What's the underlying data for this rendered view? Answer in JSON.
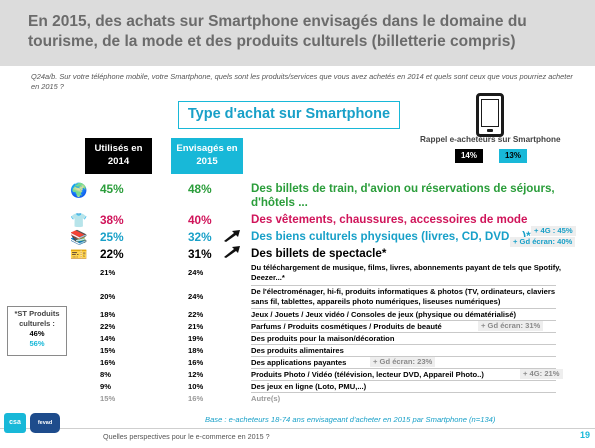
{
  "title": "En 2015, des achats sur Smartphone envisagés dans le domaine du tourisme, de la mode et des produits culturels (billetterie compris)",
  "question": "Q24a/b. Sur votre téléphone mobile, votre Smartphone, quels sont les produits/services que vous avez achetés en 2014 et quels sont ceux que vous pourriez acheter en 2015 ?",
  "type_box": "Type d'achat sur Smartphone",
  "rappel": {
    "label": "Rappel e-acheteurs sur Smartphone",
    "value_2014": "14%",
    "value_2015": "13%"
  },
  "headers": {
    "used": "Utilisés en 2014",
    "planned": "Envisagés en 2015"
  },
  "big_rows": [
    {
      "icon": "globe-icon",
      "glyph": "🌍",
      "used": "45%",
      "planned": "48%",
      "label": "Des billets de train, d'avion ou réservations de séjours, d'hôtels ...",
      "used_color": "#2a9d3a",
      "planned_color": "#2a9d3a",
      "label_color": "#2a9d3a"
    },
    {
      "icon": "clothing-icon",
      "glyph": "👕",
      "used": "38%",
      "planned": "40%",
      "label": "Des vêtements, chaussures, accessoires de mode",
      "used_color": "#d0145a",
      "planned_color": "#d0145a",
      "label_color": "#d0145a"
    },
    {
      "icon": "books-icon",
      "glyph": "📚",
      "used": "25%",
      "planned": "32%",
      "label": "Des biens culturels physiques (livres, CD, DVD ...)*",
      "used_color": "#18a0c8",
      "planned_color": "#18a0c8",
      "label_color": "#18a0c8"
    },
    {
      "icon": "ticket-icon",
      "glyph": "🎫",
      "used": "22%",
      "planned": "31%",
      "label": "Des billets de spectacle*",
      "used_color": "#000000",
      "planned_color": "#000000",
      "label_color": "#000000"
    }
  ],
  "big_notes": {
    "books_4g": "+ 4G : 45%",
    "books_gd": "+ Gd écran: 40%"
  },
  "small_rows": [
    {
      "used": "21%",
      "planned": "24%",
      "label": "Du téléchargement de musique, films, livres, abonnements payant de tels que Spotify, Deezer...*"
    },
    {
      "used": "20%",
      "planned": "24%",
      "label": "De l'électroménager, hi-fi, produits informatiques & photos (TV, ordinateurs, claviers sans fil, tablettes, appareils photo numériques, liseuses numériques)"
    },
    {
      "used": "18%",
      "planned": "22%",
      "label": "Jeux / Jouets / Jeux vidéo / Consoles de jeux (physique ou dématérialisé)"
    },
    {
      "used": "22%",
      "planned": "21%",
      "label": "Parfums / Produits cosmétiques / Produits de beauté"
    },
    {
      "used": "14%",
      "planned": "19%",
      "label": "Des produits pour la maison/décoration"
    },
    {
      "used": "15%",
      "planned": "18%",
      "label": "Des produits alimentaires"
    },
    {
      "used": "16%",
      "planned": "16%",
      "label": "Des applications payantes"
    },
    {
      "used": "8%",
      "planned": "12%",
      "label": "Produits Photo / Vidéo (télévision, lecteur DVD, Appareil Photo..)"
    },
    {
      "used": "9%",
      "planned": "10%",
      "label": "Des jeux en ligne (Loto, PMU,...)"
    },
    {
      "used": "15%",
      "planned": "16%",
      "label": "Autre(s)"
    }
  ],
  "small_notes": {
    "beaute": "+ Gd écran: 31%",
    "applis": "+ Gd écran: 23%",
    "photo": "+ 4G: 21%"
  },
  "st_box": {
    "label": "*ST Produits culturels :",
    "value_2014": "46%",
    "value_2015": "56%"
  },
  "base": "Base : e-acheteurs 18-74 ans envisageant d'acheter en 2015 par Smartphone (n=134)",
  "footer": {
    "text": "Quelles perspectives pour le e-commerce en 2015 ?",
    "page": "19",
    "logo_csa": "csa",
    "logo_fevad": "fevad"
  }
}
